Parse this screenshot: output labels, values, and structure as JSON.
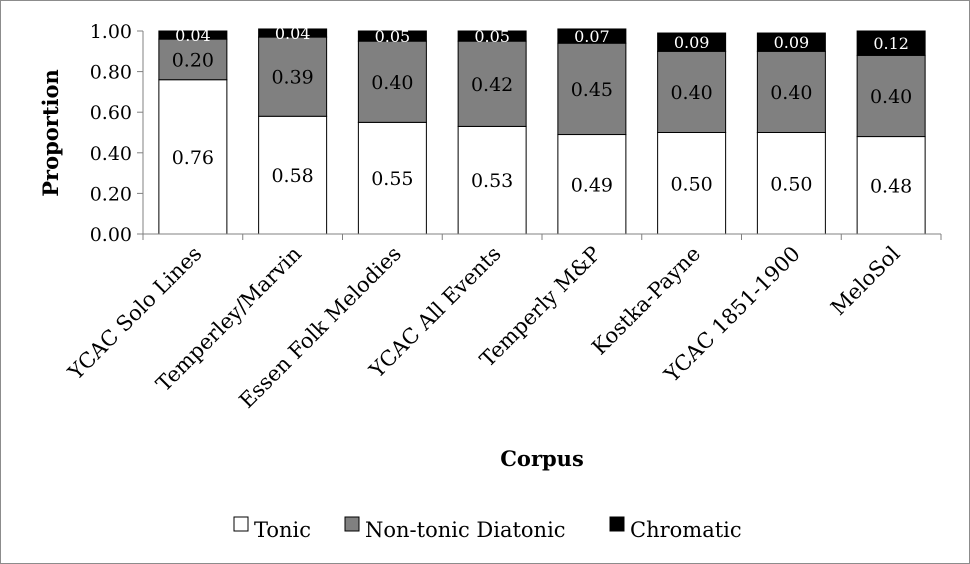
{
  "chart_data": {
    "type": "bar",
    "stacked": true,
    "title": "",
    "xlabel": "Corpus",
    "ylabel": "Proportion",
    "ylim": [
      0,
      1
    ],
    "yticks": [
      "0.00",
      "0.20",
      "0.40",
      "0.60",
      "0.80",
      "1.00"
    ],
    "grid": false,
    "legend_position": "bottom",
    "categories": [
      "YCAC Solo Lines",
      "Temperley/Marvin",
      "Essen Folk Melodies",
      "YCAC All Events",
      "Temperly M&P",
      "Kostka-Payne",
      "YCAC 1851-1900",
      "MeloSol"
    ],
    "series": [
      {
        "name": "Tonic",
        "color": "#ffffff",
        "label_color": "#000000",
        "values": [
          0.76,
          0.58,
          0.55,
          0.53,
          0.49,
          0.5,
          0.5,
          0.48
        ],
        "labels": [
          "0.76",
          "0.58",
          "0.55",
          "0.53",
          "0.49",
          "0.50",
          "0.50",
          "0.48"
        ]
      },
      {
        "name": "Non-tonic Diatonic",
        "color": "#808080",
        "label_color": "#000000",
        "values": [
          0.2,
          0.39,
          0.4,
          0.42,
          0.45,
          0.4,
          0.4,
          0.4
        ],
        "labels": [
          "0.20",
          "0.39",
          "0.40",
          "0.42",
          "0.45",
          "0.40",
          "0.40",
          "0.40"
        ]
      },
      {
        "name": "Chromatic",
        "color": "#000000",
        "label_color": "#ffffff",
        "values": [
          0.04,
          0.04,
          0.05,
          0.05,
          0.07,
          0.09,
          0.09,
          0.12
        ],
        "labels": [
          "0.04",
          "0.04",
          "0.05",
          "0.05",
          "0.07",
          "0.09",
          "0.09",
          "0.12"
        ]
      }
    ]
  }
}
